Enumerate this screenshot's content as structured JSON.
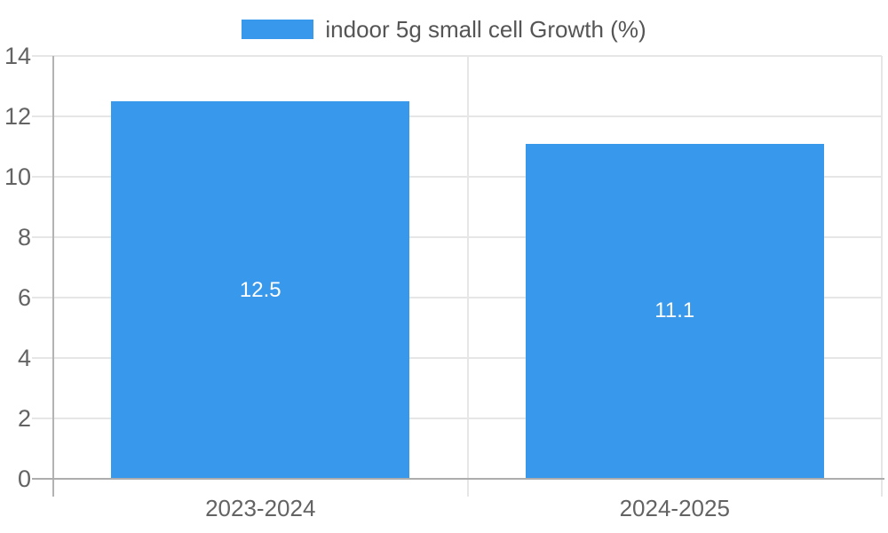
{
  "chart_data": {
    "type": "bar",
    "title": "",
    "legend": {
      "position": "top",
      "entries": [
        {
          "label": "indoor 5g small cell Growth (%)",
          "color": "#3898EC"
        }
      ]
    },
    "categories": [
      "2023-2024",
      "2024-2025"
    ],
    "series": [
      {
        "name": "indoor 5g small cell Growth (%)",
        "values": [
          12.5,
          11.1
        ]
      }
    ],
    "bar_value_labels": [
      "12.5",
      "11.1"
    ],
    "xlabel": "",
    "ylabel": "",
    "ylim": [
      0,
      14
    ],
    "ytick_step": 2,
    "yticks": [
      "0",
      "2",
      "4",
      "6",
      "8",
      "10",
      "12",
      "14"
    ],
    "grid": true,
    "legend_visible": true
  },
  "colors": {
    "bar": "#3898EC",
    "grid": "#e6e6e6",
    "axis_line": "#b3b3b3",
    "baseline": "#adadad",
    "axis_text": "#636363",
    "legend_text": "#555555",
    "bar_label_text": "#ffffff",
    "background": "#ffffff"
  }
}
